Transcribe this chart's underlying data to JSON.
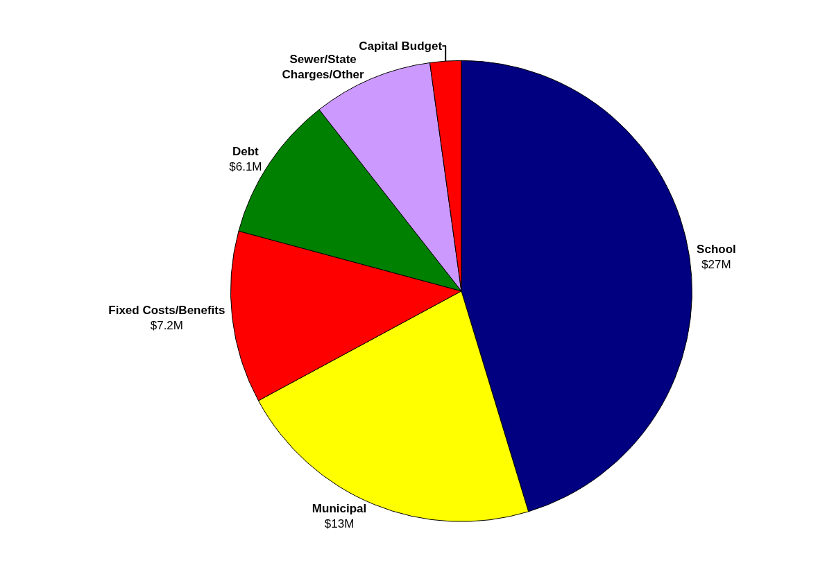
{
  "chart_data": {
    "type": "pie",
    "categories": [
      "School",
      "Municipal",
      "Fixed Costs/Benefits",
      "Debt",
      "Sewer/State Charges/Other",
      "Capital Budget"
    ],
    "values": [
      27,
      13,
      7.2,
      6.1,
      5.0,
      1.3
    ],
    "value_labels": [
      "$27M",
      "$13M",
      "$7.2M",
      "$6.1M",
      null,
      null
    ],
    "colors": [
      "#000080",
      "#ffff00",
      "#ff0000",
      "#008000",
      "#cc99ff",
      "#ff0000"
    ],
    "legend": false
  }
}
